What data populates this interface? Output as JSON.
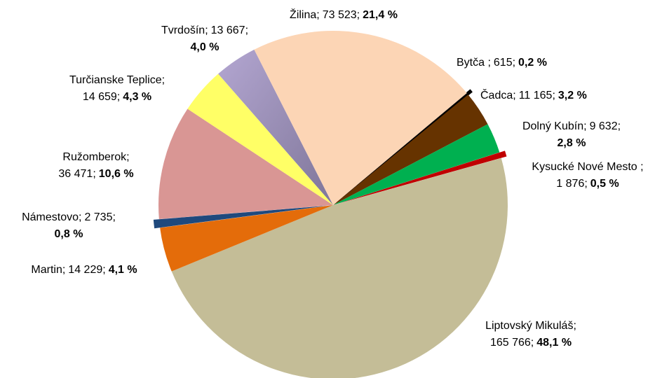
{
  "chart_data": {
    "type": "pie",
    "categories": [
      "Bytča ;",
      "Čadca;",
      "Dolný Kubín;",
      "Kysucké Nové Mesto ;",
      "Liptovský Mikuláš;",
      "Martin;",
      "Námestovo;",
      "Ružomberok;",
      "Turčianske Teplice;",
      "Tvrdošín;",
      "Žilina;"
    ],
    "values": [
      615,
      11165,
      9632,
      1876,
      165766,
      14229,
      2735,
      36471,
      14659,
      13667,
      73523
    ],
    "value_labels": [
      "615;",
      "11 165;",
      "9 632;",
      "1 876;",
      "165 766;",
      "14 229;",
      "2 735;",
      "36 471;",
      "14 659;",
      "13 667;",
      "73 523;"
    ],
    "percent_labels": [
      "0,2 %",
      "3,2 %",
      "2,8 %",
      "0,5 %",
      "48,1 %",
      "4,1 %",
      "0,8 %",
      "10,6 %",
      "4,3 %",
      "4,0 %",
      "21,4 %"
    ],
    "colors": [
      "#000000",
      "#663300",
      "#00b050",
      "#c00000",
      "#c4bd97",
      "#e46c0a",
      "#1f497d",
      "#d99694",
      "#ffff66",
      "#a79bc4",
      "#fcd5b5"
    ]
  }
}
